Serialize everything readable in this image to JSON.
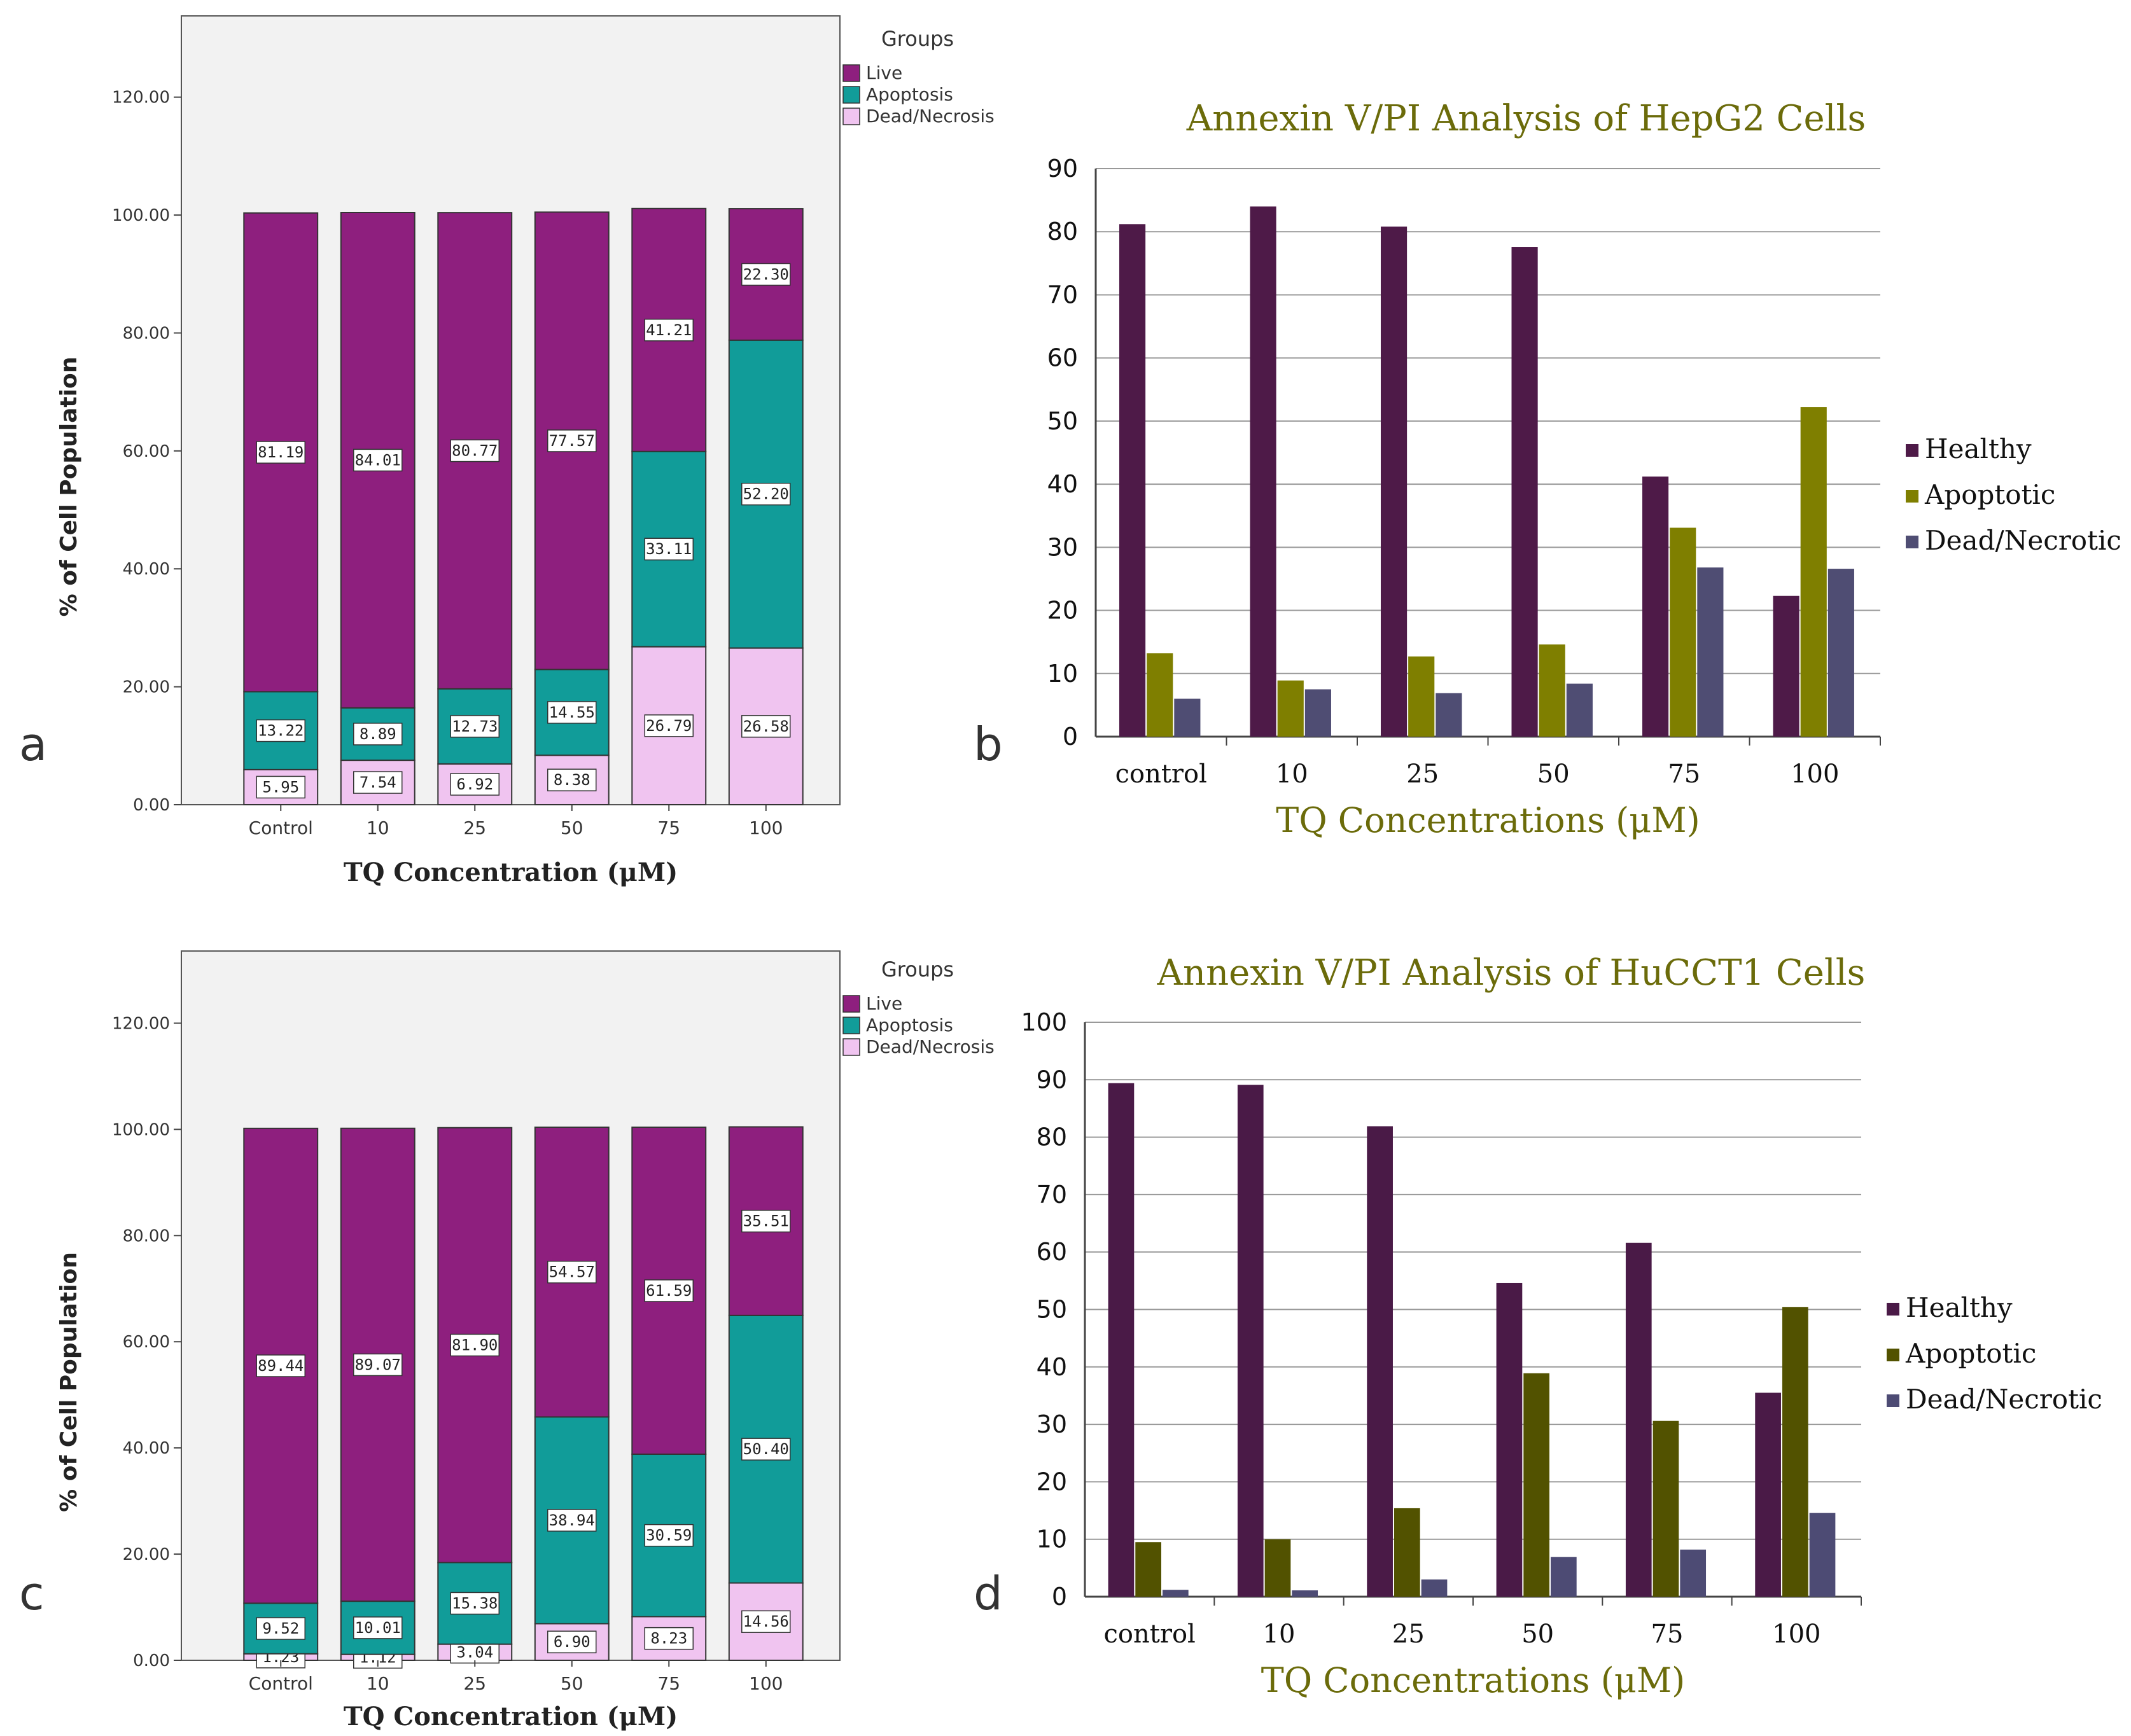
{
  "panels": [
    {
      "id": "a",
      "letter": "a"
    },
    {
      "id": "b",
      "letter": "b"
    },
    {
      "id": "c",
      "letter": "c"
    },
    {
      "id": "d",
      "letter": "d"
    }
  ],
  "chart_data": [
    {
      "panel": "a",
      "type": "bar",
      "stacked": true,
      "title": "",
      "xlabel": "TQ Concentration (μM)",
      "ylabel": "% of Cell Population",
      "ylim": [
        0,
        130
      ],
      "yticks": [
        "0.00",
        "20.00",
        "40.00",
        "60.00",
        "80.00",
        "100.00",
        "120.00"
      ],
      "categories": [
        "Control",
        "10",
        "25",
        "50",
        "75",
        "100"
      ],
      "legend_title": "Groups",
      "legend_position": "top-right",
      "series": [
        {
          "name": "Dead/Necrosis",
          "color": "#f0c4f0",
          "values": [
            5.95,
            7.54,
            6.92,
            8.38,
            26.79,
            26.58
          ],
          "labels": [
            "5.95",
            "7.54",
            "6.92",
            "8.38",
            "26.79",
            "26.58"
          ]
        },
        {
          "name": "Apoptosis",
          "color": "#119c99",
          "values": [
            13.22,
            8.89,
            12.73,
            14.55,
            33.11,
            52.2
          ],
          "labels": [
            "13.22",
            "8.89",
            "12.73",
            "14.55",
            "33.11",
            "52.20"
          ]
        },
        {
          "name": "Live",
          "color": "#8e1f7e",
          "values": [
            81.19,
            84.01,
            80.77,
            77.57,
            41.21,
            22.3
          ],
          "labels": [
            "81.19",
            "84.01",
            "80.77",
            "77.57",
            "41.21",
            "22.30"
          ]
        }
      ],
      "legend_order": [
        "Live",
        "Apoptosis",
        "Dead/Necrosis"
      ]
    },
    {
      "panel": "b",
      "type": "bar",
      "stacked": false,
      "title": "Annexin V/PI Analysis of HepG2 Cells",
      "xlabel": "TQ Concentrations (μM)",
      "ylabel": "",
      "ylim": [
        0,
        90
      ],
      "yticks": [
        "0",
        "10",
        "20",
        "30",
        "40",
        "50",
        "60",
        "70",
        "80",
        "90"
      ],
      "categories": [
        "control",
        "10",
        "25",
        "50",
        "75",
        "100"
      ],
      "legend_position": "right",
      "series": [
        {
          "name": "Healthy",
          "color": "#4e1a48",
          "values": [
            81.2,
            84.0,
            80.8,
            77.6,
            41.2,
            22.3
          ]
        },
        {
          "name": "Apoptotic",
          "color": "#7f7f00",
          "values": [
            13.2,
            8.9,
            12.7,
            14.6,
            33.1,
            52.2
          ]
        },
        {
          "name": "Dead/Necrotic",
          "color": "#4f4d73",
          "values": [
            6.0,
            7.5,
            6.9,
            8.4,
            26.8,
            26.6
          ]
        }
      ]
    },
    {
      "panel": "c",
      "type": "bar",
      "stacked": true,
      "title": "",
      "xlabel": "TQ Concentration (μM)",
      "ylabel": "% of Cell Population",
      "ylim": [
        0,
        130
      ],
      "yticks": [
        "0.00",
        "20.00",
        "40.00",
        "60.00",
        "80.00",
        "100.00",
        "120.00"
      ],
      "categories": [
        "Control",
        "10",
        "25",
        "50",
        "75",
        "100"
      ],
      "legend_title": "Groups",
      "legend_position": "top-right",
      "series": [
        {
          "name": "Dead/Necrosis",
          "color": "#f0c4f0",
          "values": [
            1.23,
            1.12,
            3.04,
            6.9,
            8.23,
            14.56
          ],
          "labels": [
            "1.23",
            "1.12",
            "3.04",
            "6.90",
            "8.23",
            "14.56"
          ]
        },
        {
          "name": "Apoptosis",
          "color": "#119c99",
          "values": [
            9.52,
            10.01,
            15.38,
            38.94,
            30.59,
            50.4
          ],
          "labels": [
            "9.52",
            "10.01",
            "15.38",
            "38.94",
            "30.59",
            "50.40"
          ]
        },
        {
          "name": "Live",
          "color": "#8e1f7e",
          "values": [
            89.44,
            89.07,
            81.9,
            54.57,
            61.59,
            35.51
          ],
          "labels": [
            "89.44",
            "89.07",
            "81.90",
            "54.57",
            "61.59",
            "35.51"
          ]
        }
      ],
      "legend_order": [
        "Live",
        "Apoptosis",
        "Dead/Necrosis"
      ]
    },
    {
      "panel": "d",
      "type": "bar",
      "stacked": false,
      "title": "Annexin V/PI Analysis of HuCCT1 Cells",
      "xlabel": "TQ Concentrations (μM)",
      "ylabel": "",
      "ylim": [
        0,
        100
      ],
      "yticks": [
        "0",
        "10",
        "20",
        "30",
        "40",
        "50",
        "60",
        "70",
        "80",
        "90",
        "100"
      ],
      "categories": [
        "control",
        "10",
        "25",
        "50",
        "75",
        "100"
      ],
      "legend_position": "right",
      "series": [
        {
          "name": "Healthy",
          "color": "#4a1a47",
          "values": [
            89.4,
            89.1,
            81.9,
            54.6,
            61.6,
            35.5
          ]
        },
        {
          "name": "Apoptotic",
          "color": "#525200",
          "values": [
            9.5,
            10.0,
            15.4,
            38.9,
            30.6,
            50.4
          ]
        },
        {
          "name": "Dead/Necrotic",
          "color": "#4d4b74",
          "values": [
            1.2,
            1.1,
            3.0,
            6.9,
            8.2,
            14.6
          ]
        }
      ]
    }
  ]
}
